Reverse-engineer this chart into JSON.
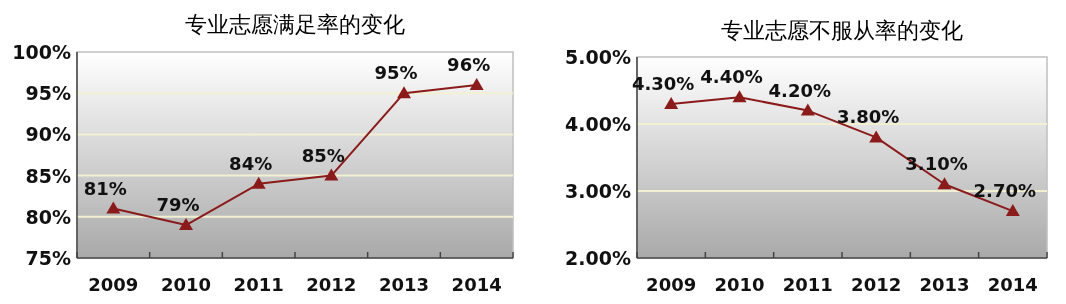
{
  "chart_data": [
    {
      "type": "line",
      "title": "专业志愿满足率的变化",
      "categories": [
        "2009",
        "2010",
        "2011",
        "2012",
        "2013",
        "2014"
      ],
      "series": [
        {
          "color": "#8b1a1a",
          "values": [
            81,
            79,
            84,
            85,
            95,
            96
          ],
          "value_labels": [
            "81%",
            "79%",
            "84%",
            "85%",
            "95%",
            "96%"
          ]
        }
      ],
      "ylim": [
        75,
        100
      ],
      "yticks": [
        {
          "value": 75,
          "label": "75%"
        },
        {
          "value": 80,
          "label": "80%"
        },
        {
          "value": 85,
          "label": "85%"
        },
        {
          "value": 90,
          "label": "90%"
        },
        {
          "value": 95,
          "label": "95%"
        },
        {
          "value": 100,
          "label": "100%"
        }
      ],
      "grid": "y",
      "marker": "triangle",
      "line_style": "solid"
    },
    {
      "type": "line",
      "title": "专业志愿不服从率的变化",
      "categories": [
        "2009",
        "2010",
        "2011",
        "2012",
        "2013",
        "2014"
      ],
      "series": [
        {
          "color": "#8b1a1a",
          "values": [
            4.3,
            4.4,
            4.2,
            3.8,
            3.1,
            2.7
          ],
          "value_labels": [
            "4.30%",
            "4.40%",
            "4.20%",
            "3.80%",
            "3.10%",
            "2.70%"
          ]
        }
      ],
      "ylim": [
        2,
        5
      ],
      "yticks": [
        {
          "value": 2,
          "label": "2.00%"
        },
        {
          "value": 3,
          "label": "3.00%"
        },
        {
          "value": 4,
          "label": "4.00%"
        },
        {
          "value": 5,
          "label": "5.00%"
        }
      ],
      "grid": "y",
      "marker": "triangle",
      "line_style": "solid"
    }
  ]
}
